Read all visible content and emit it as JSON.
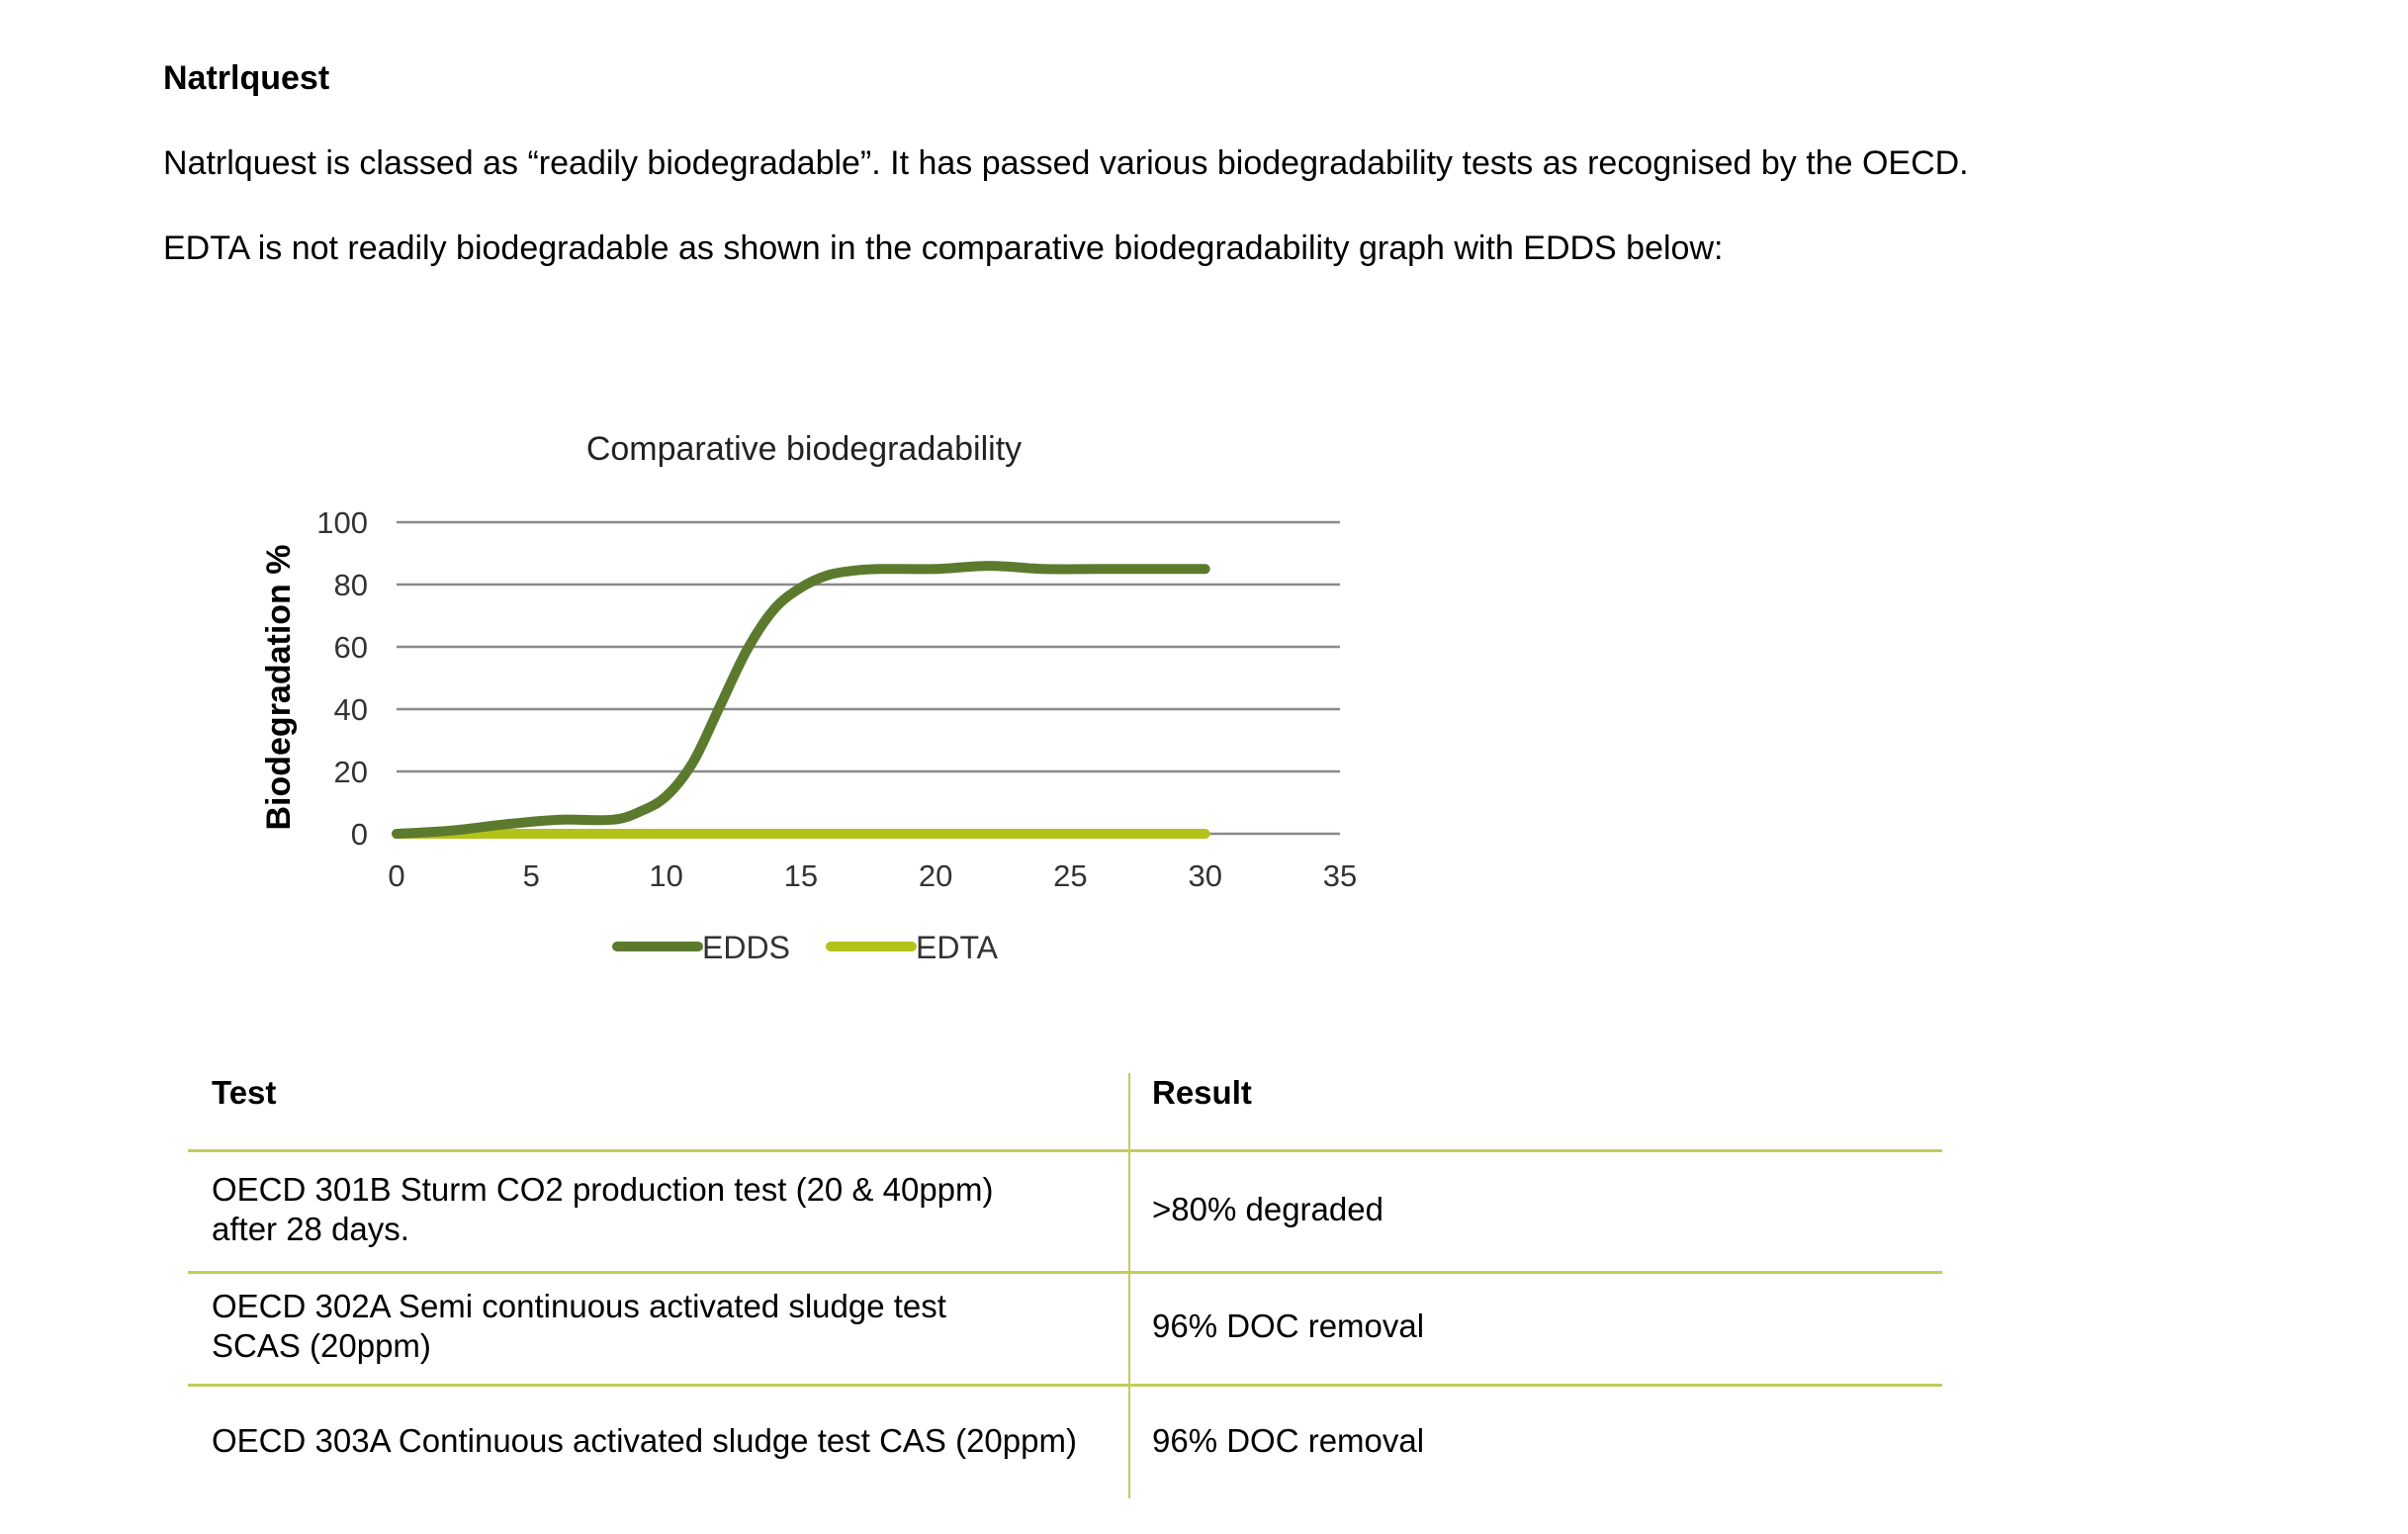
{
  "heading": "Natrlquest",
  "paragraphs": [
    "Natrlquest is classed as “readily biodegradable”.  It has passed various biodegradability tests as recognised by the OECD.",
    "EDTA is not readily biodegradable as shown in the comparative biodegradability graph with EDDS below:"
  ],
  "chart_data": {
    "type": "line",
    "title": "Comparative biodegradability",
    "xlabel": "",
    "ylabel": "Biodegradation  %",
    "xlim": [
      0,
      35
    ],
    "ylim": [
      0,
      100
    ],
    "xticks": [
      0,
      5,
      10,
      15,
      20,
      25,
      30,
      35
    ],
    "yticks": [
      0,
      20,
      40,
      60,
      80,
      100
    ],
    "grid": "horizontal",
    "legend_position": "bottom",
    "series": [
      {
        "name": "EDDS",
        "color": "#5b7a2e",
        "x": [
          0,
          2,
          4,
          6,
          8,
          9,
          10,
          11,
          12,
          13,
          14,
          15,
          16,
          17,
          18,
          20,
          22,
          24,
          26,
          28,
          30
        ],
        "y": [
          0,
          1,
          3,
          4.5,
          4.5,
          7,
          12,
          23,
          41,
          59,
          72,
          79,
          83,
          84.5,
          85,
          85,
          86,
          85,
          85,
          85,
          85
        ]
      },
      {
        "name": "EDTA",
        "color": "#b4c21a",
        "x": [
          0,
          30
        ],
        "y": [
          0,
          0
        ]
      }
    ]
  },
  "table": {
    "headers": [
      "Test",
      "Result"
    ],
    "rows": [
      {
        "test": [
          "OECD 301B Sturm CO2 production test (20 & 40ppm)",
          "after 28 days."
        ],
        "result": ">80% degraded"
      },
      {
        "test": [
          "OECD 302A Semi continuous activated sludge test",
          "SCAS (20ppm)"
        ],
        "result": "96% DOC removal"
      },
      {
        "test": [
          "OECD 303A Continuous activated sludge test CAS (20ppm)"
        ],
        "result": "96% DOC removal"
      }
    ],
    "line_color": "#c3cc5a"
  }
}
